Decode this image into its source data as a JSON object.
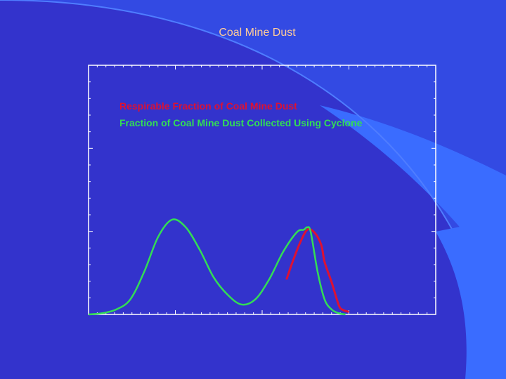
{
  "slide": {
    "title": "Coal Mine Dust",
    "colors": {
      "background": "#3333cc",
      "accent_swoosh": "#3366ff",
      "title_text": "#ffcc99",
      "plot_border": "#ffffff"
    }
  },
  "chart_data": {
    "type": "line",
    "title": "",
    "xlabel": "",
    "ylabel": "",
    "axes_labels_visible": false,
    "xlim": [
      0,
      100
    ],
    "ylim": [
      0,
      100
    ],
    "grid": false,
    "legend_position": "top-left",
    "series": [
      {
        "name": "Respirable Fraction of Coal Mine Dust",
        "color": "#dd1133",
        "x": [
          57,
          59,
          61,
          63,
          65,
          67,
          68,
          70,
          72,
          73,
          75
        ],
        "y": [
          14,
          22,
          29,
          34,
          33,
          28,
          21,
          13,
          4,
          2,
          1
        ]
      },
      {
        "name": "Fraction of Coal Mine Dust Collected Using Cyclone",
        "color": "#33dd55",
        "x": [
          0,
          4,
          8,
          12,
          16,
          20,
          24,
          28,
          32,
          36,
          40,
          44,
          48,
          52,
          56,
          60,
          62,
          63,
          64,
          66,
          68,
          70,
          72,
          74
        ],
        "y": [
          0,
          0.5,
          2,
          6,
          17,
          31,
          38,
          35,
          26,
          15,
          8,
          4,
          6,
          14,
          25,
          33,
          34,
          35,
          33,
          17,
          6,
          2,
          0.5,
          0
        ]
      }
    ]
  }
}
